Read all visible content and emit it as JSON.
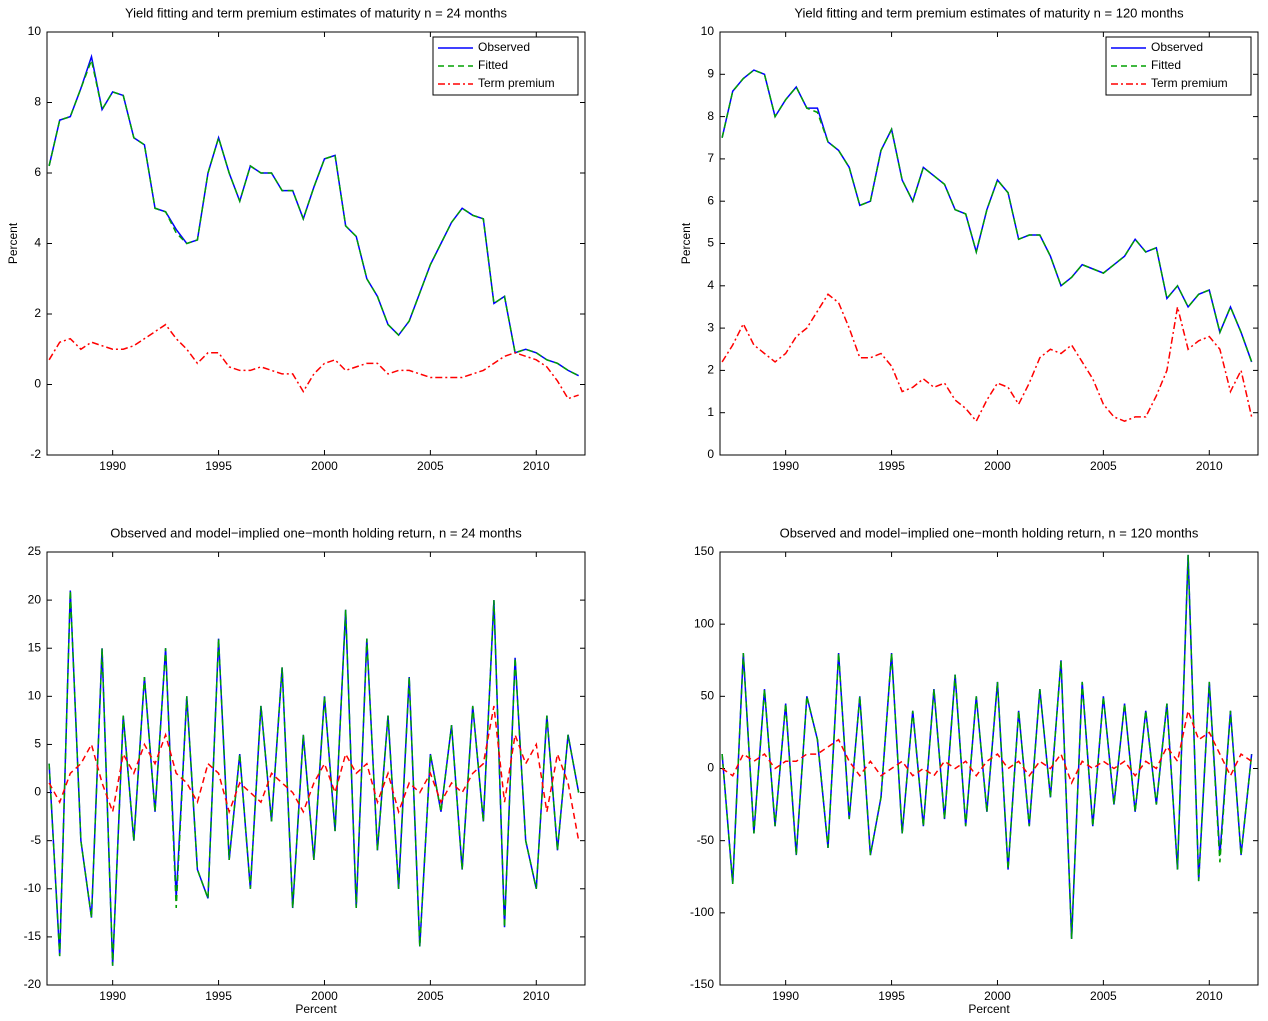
{
  "chart_data": [
    {
      "type": "line",
      "title": "Yield fitting and term premium estimates of maturity n = 24 months",
      "y_label": "Percent",
      "x": [
        1987,
        1987.5,
        1988,
        1988.5,
        1989,
        1989.5,
        1990,
        1990.5,
        1991,
        1991.5,
        1992,
        1992.5,
        1993,
        1993.5,
        1994,
        1994.5,
        1995,
        1995.5,
        1996,
        1996.5,
        1997,
        1997.5,
        1998,
        1998.5,
        1999,
        1999.5,
        2000,
        2000.5,
        2001,
        2001.5,
        2002,
        2002.5,
        2003,
        2003.5,
        2004,
        2004.5,
        2005,
        2005.5,
        2006,
        2006.5,
        2007,
        2007.5,
        2008,
        2008.5,
        2009,
        2009.5,
        2010,
        2010.5,
        2011,
        2011.5,
        2012
      ],
      "xlim": [
        1986.9,
        2012.3
      ],
      "xticks": [
        1990,
        1995,
        2000,
        2005,
        2010
      ],
      "ylim": [
        -2,
        10
      ],
      "yticks": [
        -2,
        0,
        2,
        4,
        6,
        8,
        10
      ],
      "legend": "upper right",
      "series": [
        {
          "name": "Observed",
          "color": "#0000ff",
          "linestyle": "solid",
          "values": [
            6.2,
            7.5,
            7.6,
            8.4,
            9.3,
            7.8,
            8.3,
            8.2,
            7.0,
            6.8,
            5.0,
            4.9,
            4.4,
            4.0,
            4.1,
            6.0,
            7.0,
            6.0,
            5.2,
            6.2,
            6.0,
            6.0,
            5.5,
            5.5,
            4.7,
            5.6,
            6.4,
            6.5,
            4.5,
            4.2,
            3.0,
            2.5,
            1.7,
            1.4,
            1.8,
            2.6,
            3.4,
            4.0,
            4.6,
            5.0,
            4.8,
            4.7,
            2.3,
            2.5,
            0.9,
            1.0,
            0.9,
            0.7,
            0.6,
            0.4,
            0.25
          ]
        },
        {
          "name": "Fitted",
          "color": "#00a000",
          "linestyle": "dashed",
          "values": [
            6.2,
            7.5,
            7.6,
            8.4,
            9.2,
            7.8,
            8.3,
            8.2,
            7.0,
            6.8,
            5.0,
            4.9,
            4.3,
            4.0,
            4.1,
            6.0,
            7.0,
            6.0,
            5.2,
            6.2,
            6.0,
            6.0,
            5.5,
            5.5,
            4.7,
            5.6,
            6.4,
            6.5,
            4.5,
            4.2,
            3.0,
            2.5,
            1.7,
            1.4,
            1.8,
            2.6,
            3.4,
            4.0,
            4.6,
            5.0,
            4.8,
            4.7,
            2.3,
            2.5,
            0.9,
            1.0,
            0.9,
            0.7,
            0.6,
            0.4,
            0.25
          ]
        },
        {
          "name": "Term premium",
          "color": "#ff0000",
          "linestyle": "dashdot",
          "values": [
            0.7,
            1.2,
            1.3,
            1.0,
            1.2,
            1.1,
            1.0,
            1.0,
            1.1,
            1.3,
            1.5,
            1.7,
            1.3,
            1.0,
            0.6,
            0.9,
            0.9,
            0.5,
            0.4,
            0.4,
            0.5,
            0.4,
            0.3,
            0.3,
            -0.2,
            0.3,
            0.6,
            0.7,
            0.4,
            0.5,
            0.6,
            0.6,
            0.3,
            0.4,
            0.4,
            0.3,
            0.2,
            0.2,
            0.2,
            0.2,
            0.3,
            0.4,
            0.6,
            0.8,
            0.9,
            0.8,
            0.7,
            0.5,
            0.1,
            -0.4,
            -0.3
          ]
        }
      ]
    },
    {
      "type": "line",
      "title": "Yield fitting and term premium estimates of maturity n = 120 months",
      "y_label": "Percent",
      "x": [
        1987,
        1987.5,
        1988,
        1988.5,
        1989,
        1989.5,
        1990,
        1990.5,
        1991,
        1991.5,
        1992,
        1992.5,
        1993,
        1993.5,
        1994,
        1994.5,
        1995,
        1995.5,
        1996,
        1996.5,
        1997,
        1997.5,
        1998,
        1998.5,
        1999,
        1999.5,
        2000,
        2000.5,
        2001,
        2001.5,
        2002,
        2002.5,
        2003,
        2003.5,
        2004,
        2004.5,
        2005,
        2005.5,
        2006,
        2006.5,
        2007,
        2007.5,
        2008,
        2008.5,
        2009,
        2009.5,
        2010,
        2010.5,
        2011,
        2011.5,
        2012
      ],
      "xlim": [
        1986.9,
        2012.3
      ],
      "xticks": [
        1990,
        1995,
        2000,
        2005,
        2010
      ],
      "ylim": [
        0,
        10
      ],
      "yticks": [
        0,
        1,
        2,
        3,
        4,
        5,
        6,
        7,
        8,
        9,
        10
      ],
      "legend": "upper right",
      "series": [
        {
          "name": "Observed",
          "color": "#0000ff",
          "linestyle": "solid",
          "values": [
            7.5,
            8.6,
            8.9,
            9.1,
            9.0,
            8.0,
            8.4,
            8.7,
            8.2,
            8.2,
            7.4,
            7.2,
            6.8,
            5.9,
            6.0,
            7.2,
            7.7,
            6.5,
            6.0,
            6.8,
            6.6,
            6.4,
            5.8,
            5.7,
            4.8,
            5.8,
            6.5,
            6.2,
            5.1,
            5.2,
            5.2,
            4.7,
            4.0,
            4.2,
            4.5,
            4.4,
            4.3,
            4.5,
            4.7,
            5.1,
            4.8,
            4.9,
            3.7,
            4.0,
            3.5,
            3.8,
            3.9,
            2.9,
            3.5,
            2.9,
            2.2
          ]
        },
        {
          "name": "Fitted",
          "color": "#00a000",
          "linestyle": "dashed",
          "values": [
            7.5,
            8.6,
            8.9,
            9.1,
            9.0,
            8.0,
            8.4,
            8.7,
            8.2,
            8.1,
            7.4,
            7.2,
            6.8,
            5.9,
            6.0,
            7.2,
            7.7,
            6.5,
            6.0,
            6.8,
            6.6,
            6.4,
            5.8,
            5.7,
            4.8,
            5.8,
            6.5,
            6.2,
            5.1,
            5.2,
            5.2,
            4.7,
            4.0,
            4.2,
            4.5,
            4.4,
            4.3,
            4.5,
            4.7,
            5.1,
            4.8,
            4.9,
            3.7,
            4.0,
            3.5,
            3.8,
            3.9,
            2.9,
            3.5,
            2.9,
            2.2
          ]
        },
        {
          "name": "Term premium",
          "color": "#ff0000",
          "linestyle": "dashdot",
          "values": [
            2.2,
            2.6,
            3.1,
            2.6,
            2.4,
            2.2,
            2.4,
            2.8,
            3.0,
            3.4,
            3.8,
            3.6,
            3.0,
            2.3,
            2.3,
            2.4,
            2.1,
            1.5,
            1.6,
            1.8,
            1.6,
            1.7,
            1.3,
            1.1,
            0.8,
            1.3,
            1.7,
            1.6,
            1.2,
            1.7,
            2.3,
            2.5,
            2.4,
            2.6,
            2.2,
            1.8,
            1.2,
            0.9,
            0.8,
            0.9,
            0.9,
            1.4,
            2.0,
            3.5,
            2.5,
            2.7,
            2.8,
            2.5,
            1.5,
            2.0,
            0.9
          ]
        }
      ]
    },
    {
      "type": "line",
      "title": "Observed and model−implied one−month holding return, n = 24 months",
      "x_label": "Percent",
      "x": [
        1987,
        1987.5,
        1988,
        1988.5,
        1989,
        1989.5,
        1990,
        1990.5,
        1991,
        1991.5,
        1992,
        1992.5,
        1993,
        1993.5,
        1994,
        1994.5,
        1995,
        1995.5,
        1996,
        1996.5,
        1997,
        1997.5,
        1998,
        1998.5,
        1999,
        1999.5,
        2000,
        2000.5,
        2001,
        2001.5,
        2002,
        2002.5,
        2003,
        2003.5,
        2004,
        2004.5,
        2005,
        2005.5,
        2006,
        2006.5,
        2007,
        2007.5,
        2008,
        2008.5,
        2009,
        2009.5,
        2010,
        2010.5,
        2011,
        2011.5,
        2012
      ],
      "xlim": [
        1986.9,
        2012.3
      ],
      "xticks": [
        1990,
        1995,
        2000,
        2005,
        2010
      ],
      "ylim": [
        -20,
        25
      ],
      "yticks": [
        -20,
        -15,
        -10,
        -5,
        0,
        5,
        10,
        15,
        20,
        25
      ],
      "series": [
        {
          "color": "#0000ff",
          "linestyle": "solid",
          "values": [
            3,
            -17,
            21,
            -5,
            -13,
            15,
            -18,
            8,
            -5,
            12,
            -2,
            15,
            -11,
            10,
            -8,
            -11,
            16,
            -7,
            4,
            -10,
            9,
            -3,
            13,
            -12,
            6,
            -7,
            10,
            -4,
            19,
            -12,
            16,
            -6,
            8,
            -10,
            12,
            -16,
            4,
            -2,
            7,
            -8,
            9,
            -3,
            20,
            -14,
            14,
            -5,
            -10,
            8,
            -6,
            6,
            0
          ]
        },
        {
          "color": "#00a000",
          "linestyle": "dashed",
          "values": [
            3,
            -17,
            21,
            -5,
            -13,
            15,
            -18,
            8,
            -5,
            12,
            -2,
            15,
            -12,
            10,
            -8,
            -11,
            16,
            -7,
            4,
            -10,
            9,
            -3,
            13,
            -12,
            6,
            -7,
            10,
            -4,
            19,
            -12,
            16,
            -6,
            8,
            -10,
            12,
            -16,
            4,
            -2,
            7,
            -8,
            9,
            -3,
            20,
            -14,
            14,
            -5,
            -10,
            8,
            -6,
            6,
            0
          ]
        },
        {
          "color": "#ff0000",
          "linestyle": "dashed",
          "values": [
            1,
            -1,
            2,
            3,
            5,
            1,
            -2,
            4,
            2,
            5,
            3,
            6,
            2,
            1,
            -1,
            3,
            2,
            -2,
            1,
            0,
            -1,
            2,
            1,
            0,
            -2,
            1,
            3,
            0,
            4,
            2,
            3,
            -1,
            2,
            -2,
            1,
            0,
            2,
            -1,
            1,
            0,
            2,
            3,
            9,
            -1,
            6,
            3,
            5,
            -2,
            4,
            1,
            -5
          ]
        }
      ]
    },
    {
      "type": "line",
      "title": "Observed and model−implied one−month holding return, n = 120 months",
      "x_label": "Percent",
      "x": [
        1987,
        1987.5,
        1988,
        1988.5,
        1989,
        1989.5,
        1990,
        1990.5,
        1991,
        1991.5,
        1992,
        1992.5,
        1993,
        1993.5,
        1994,
        1994.5,
        1995,
        1995.5,
        1996,
        1996.5,
        1997,
        1997.5,
        1998,
        1998.5,
        1999,
        1999.5,
        2000,
        2000.5,
        2001,
        2001.5,
        2002,
        2002.5,
        2003,
        2003.5,
        2004,
        2004.5,
        2005,
        2005.5,
        2006,
        2006.5,
        2007,
        2007.5,
        2008,
        2008.5,
        2009,
        2009.5,
        2010,
        2010.5,
        2011,
        2011.5,
        2012
      ],
      "xlim": [
        1986.9,
        2012.3
      ],
      "xticks": [
        1990,
        1995,
        2000,
        2005,
        2010
      ],
      "ylim": [
        -150,
        150
      ],
      "yticks": [
        -150,
        -100,
        -50,
        0,
        50,
        100,
        150
      ],
      "series": [
        {
          "color": "#0000ff",
          "linestyle": "solid",
          "values": [
            10,
            -80,
            80,
            -45,
            55,
            -40,
            45,
            -60,
            50,
            20,
            -55,
            80,
            -35,
            50,
            -60,
            -20,
            80,
            -45,
            40,
            -40,
            55,
            -35,
            65,
            -40,
            50,
            -30,
            60,
            -70,
            40,
            -40,
            55,
            -20,
            75,
            -118,
            60,
            -40,
            50,
            -25,
            45,
            -30,
            40,
            -25,
            45,
            -70,
            148,
            -78,
            60,
            -60,
            40,
            -60,
            10
          ]
        },
        {
          "color": "#00a000",
          "linestyle": "dashed",
          "values": [
            10,
            -80,
            80,
            -45,
            55,
            -40,
            45,
            -60,
            50,
            20,
            -55,
            80,
            -35,
            50,
            -60,
            -20,
            80,
            -45,
            40,
            -40,
            55,
            -35,
            65,
            -40,
            50,
            -30,
            60,
            -70,
            40,
            -40,
            55,
            -20,
            75,
            -118,
            60,
            -40,
            50,
            -25,
            45,
            -30,
            40,
            -25,
            45,
            -70,
            148,
            -78,
            60,
            -65,
            40,
            -60,
            10
          ]
        },
        {
          "color": "#ff0000",
          "linestyle": "dashed",
          "values": [
            0,
            -5,
            10,
            5,
            10,
            0,
            5,
            5,
            10,
            10,
            15,
            20,
            5,
            -5,
            5,
            -5,
            0,
            5,
            -5,
            0,
            -5,
            5,
            0,
            5,
            -5,
            5,
            10,
            0,
            5,
            -5,
            5,
            0,
            10,
            -10,
            5,
            0,
            5,
            0,
            5,
            -5,
            5,
            0,
            15,
            5,
            40,
            20,
            25,
            10,
            -5,
            10,
            5
          ]
        }
      ]
    }
  ]
}
